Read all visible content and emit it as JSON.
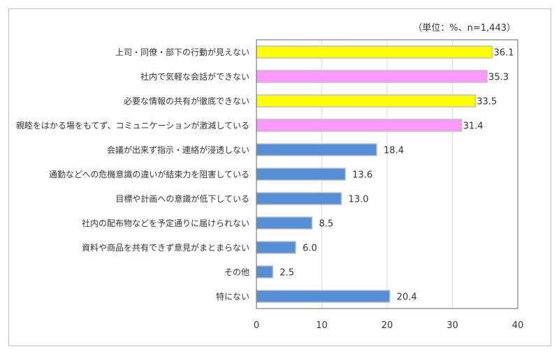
{
  "chart_data": {
    "type": "bar",
    "orientation": "horizontal",
    "unit_note": "（単位：%、n=1,443）",
    "categories": [
      "上司・同僚・部下の行動が見えない",
      "社内で気軽な会話ができない",
      "必要な情報の共有が徹底できない",
      "親睦をはかる場をもてず、コミュニケーションが激減している",
      "会議が出来ず指示・連絡が浸透しない",
      "通勤などへの危機意識の違いが結束力を阻害している",
      "目標や計画への意識が低下している",
      "社内の配布物などを予定通りに届けられない",
      "資料や商品を共有できず意見がまとまらない",
      "その他",
      "特にない"
    ],
    "values": [
      36.1,
      35.3,
      33.5,
      31.4,
      18.4,
      13.6,
      13.0,
      8.5,
      6.0,
      2.5,
      20.4
    ],
    "value_labels": [
      "36.1",
      "35.3",
      "33.5",
      "31.4",
      "18.4",
      "13.6",
      "13.0",
      "8.5",
      "6.0",
      "2.5",
      "20.4"
    ],
    "colors": [
      "#ffff00",
      "#ff99ff",
      "#ffff00",
      "#ff99ff",
      "#558ed5",
      "#558ed5",
      "#558ed5",
      "#558ed5",
      "#558ed5",
      "#558ed5",
      "#558ed5"
    ],
    "xlim": [
      0,
      40
    ],
    "xticks": [
      "0",
      "10",
      "20",
      "30",
      "40"
    ],
    "grid": true,
    "title": "",
    "xlabel": "",
    "ylabel": ""
  }
}
